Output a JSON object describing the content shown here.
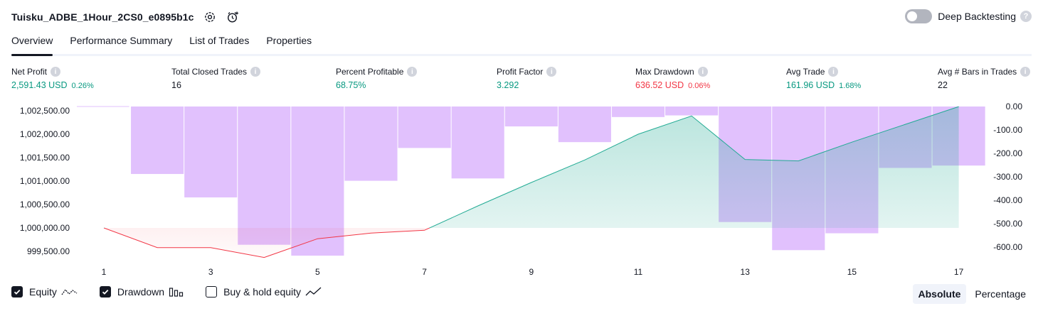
{
  "header": {
    "strategy_name": "Tuisku_ADBE_1Hour_2CS0_e0895b1c",
    "deep_backtesting_label": "Deep Backtesting",
    "deep_backtesting_on": false
  },
  "tabs": [
    {
      "label": "Overview",
      "active": true
    },
    {
      "label": "Performance Summary",
      "active": false
    },
    {
      "label": "List of Trades",
      "active": false
    },
    {
      "label": "Properties",
      "active": false
    }
  ],
  "metrics": {
    "net_profit": {
      "label": "Net Profit",
      "value": "2,591.43 USD",
      "pct": "0.26%",
      "tone": "green"
    },
    "total_closed_trades": {
      "label": "Total Closed Trades",
      "value": "16",
      "pct": "",
      "tone": "plain"
    },
    "percent_profitable": {
      "label": "Percent Profitable",
      "value": "68.75%",
      "pct": "",
      "tone": "green"
    },
    "profit_factor": {
      "label": "Profit Factor",
      "value": "3.292",
      "pct": "",
      "tone": "green"
    },
    "max_drawdown": {
      "label": "Max Drawdown",
      "value": "636.52 USD",
      "pct": "0.06%",
      "tone": "red"
    },
    "avg_trade": {
      "label": "Avg Trade",
      "value": "161.96 USD",
      "pct": "1.68%",
      "tone": "green"
    },
    "avg_bars": {
      "label": "Avg # Bars in Trades",
      "value": "22",
      "pct": "",
      "tone": "plain"
    }
  },
  "chart_data": {
    "type": "line",
    "x": [
      1,
      2,
      3,
      4,
      5,
      6,
      7,
      8,
      9,
      10,
      11,
      12,
      13,
      14,
      15,
      16,
      17
    ],
    "x_ticks": [
      "1",
      "3",
      "5",
      "7",
      "9",
      "11",
      "13",
      "15",
      "17"
    ],
    "left_axis": {
      "ticks": [
        "1,002,500.00",
        "1,002,000.00",
        "1,001,500.00",
        "1,001,000.00",
        "1,000,500.00",
        "1,000,000.00",
        "999,500.00"
      ],
      "ylim": [
        999400,
        1002500
      ]
    },
    "right_axis": {
      "ticks": [
        "0.00",
        "-100.00",
        "-200.00",
        "-300.00",
        "-400.00",
        "-500.00",
        "-600.00"
      ],
      "ylim": [
        -636.52,
        0
      ]
    },
    "series": [
      {
        "name": "Equity",
        "axis": "left",
        "values": [
          1000000,
          999580,
          999580,
          999370,
          999770,
          999890,
          999950,
          1000470,
          1000970,
          1001450,
          1002000,
          1002390,
          1001460,
          1001430,
          1001830,
          1002210,
          1002590
        ]
      },
      {
        "name": "Drawdown",
        "axis": "right",
        "type": "bar",
        "values": [
          0,
          -288,
          -388,
          -590,
          -636.52,
          -317,
          -177,
          -307,
          -85,
          -152,
          -45,
          -38,
          -493,
          -613,
          -541,
          -262,
          -252
        ]
      }
    ],
    "colors": {
      "equity_up": "#22ab94",
      "equity_down": "#f23645",
      "drawdown_bar": "#e1c1fd",
      "drawdown_over_equity": "#b4b6ea"
    }
  },
  "legend": {
    "equity": {
      "label": "Equity",
      "checked": true
    },
    "drawdown": {
      "label": "Drawdown",
      "checked": true
    },
    "buy_hold": {
      "label": "Buy & hold equity",
      "checked": false
    }
  },
  "mode": {
    "absolute": "Absolute",
    "percentage": "Percentage",
    "active": "absolute"
  }
}
